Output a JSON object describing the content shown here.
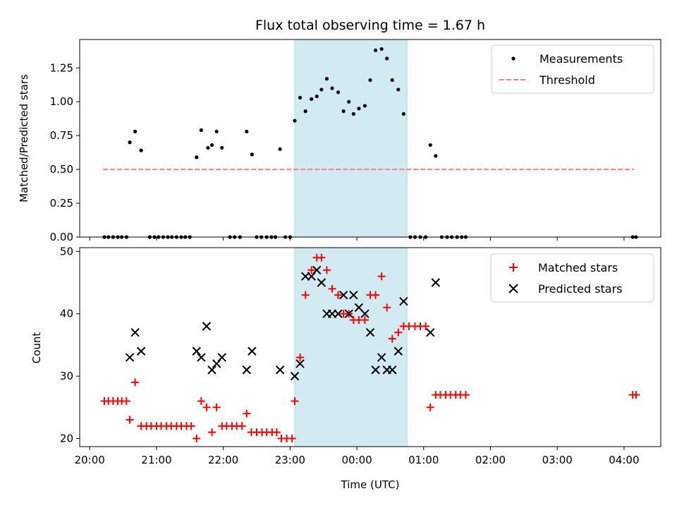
{
  "chart_data": {
    "title": "Flux total observing time = 1.67 h",
    "shaded_interval_hours": [
      23.07,
      24.75
    ],
    "shade_color": "#add8e6",
    "x_axis": {
      "label": "Time (UTC)",
      "range_hours": [
        19.85,
        28.55
      ],
      "ticks": [
        {
          "value": 20,
          "label": "20:00"
        },
        {
          "value": 21,
          "label": "21:00"
        },
        {
          "value": 22,
          "label": "22:00"
        },
        {
          "value": 23,
          "label": "23:00"
        },
        {
          "value": 24,
          "label": "00:00"
        },
        {
          "value": 25,
          "label": "01:00"
        },
        {
          "value": 26,
          "label": "02:00"
        },
        {
          "value": 27,
          "label": "03:00"
        },
        {
          "value": 28,
          "label": "04:00"
        }
      ]
    },
    "top": {
      "type": "scatter",
      "ylabel": "Matched/Predicted stars",
      "ylim": [
        0,
        1.46
      ],
      "yticks": [
        "0.00",
        "0.25",
        "0.50",
        "0.75",
        "1.00",
        "1.25"
      ],
      "legend": {
        "position": "upper right",
        "entries": [
          "Measurements",
          "Threshold"
        ]
      },
      "threshold": {
        "name": "Threshold",
        "value": 0.5,
        "x_range": [
          20.2,
          28.15
        ],
        "color": "#ff7f7f"
      },
      "measurements": {
        "name": "Measurements",
        "color": "#000000",
        "points": [
          [
            20.22,
            0
          ],
          [
            20.28,
            0
          ],
          [
            20.35,
            0
          ],
          [
            20.42,
            0
          ],
          [
            20.48,
            0
          ],
          [
            20.55,
            0
          ],
          [
            20.6,
            0.7
          ],
          [
            20.68,
            0.78
          ],
          [
            20.77,
            0.64
          ],
          [
            20.9,
            0
          ],
          [
            20.97,
            0
          ],
          [
            21.03,
            0
          ],
          [
            21.1,
            0
          ],
          [
            21.17,
            0
          ],
          [
            21.23,
            0
          ],
          [
            21.3,
            0
          ],
          [
            21.37,
            0
          ],
          [
            21.43,
            0
          ],
          [
            21.5,
            0
          ],
          [
            21.6,
            0.59
          ],
          [
            21.67,
            0.79
          ],
          [
            21.77,
            0.66
          ],
          [
            21.83,
            0.68
          ],
          [
            21.9,
            0.78
          ],
          [
            21.98,
            0.66
          ],
          [
            22.1,
            0
          ],
          [
            22.17,
            0
          ],
          [
            22.25,
            0
          ],
          [
            22.35,
            0.78
          ],
          [
            22.43,
            0.61
          ],
          [
            22.5,
            0
          ],
          [
            22.57,
            0
          ],
          [
            22.65,
            0
          ],
          [
            22.72,
            0
          ],
          [
            22.78,
            0
          ],
          [
            22.85,
            0.65
          ],
          [
            22.93,
            0
          ],
          [
            23.0,
            0
          ],
          [
            23.07,
            0.86
          ],
          [
            23.15,
            1.03
          ],
          [
            23.23,
            0.93
          ],
          [
            23.32,
            1.02
          ],
          [
            23.4,
            1.04
          ],
          [
            23.47,
            1.09
          ],
          [
            23.55,
            1.17
          ],
          [
            23.63,
            1.1
          ],
          [
            23.72,
            1.07
          ],
          [
            23.8,
            0.93
          ],
          [
            23.88,
            1.0
          ],
          [
            23.95,
            0.91
          ],
          [
            24.03,
            0.95
          ],
          [
            24.12,
            0.97
          ],
          [
            24.2,
            1.16
          ],
          [
            24.28,
            1.38
          ],
          [
            24.37,
            1.39
          ],
          [
            24.45,
            1.32
          ],
          [
            24.53,
            1.16
          ],
          [
            24.62,
            1.09
          ],
          [
            24.7,
            0.91
          ],
          [
            24.8,
            0
          ],
          [
            24.87,
            0
          ],
          [
            24.95,
            0
          ],
          [
            25.03,
            0
          ],
          [
            25.1,
            0.68
          ],
          [
            25.18,
            0.6
          ],
          [
            25.27,
            0
          ],
          [
            25.35,
            0
          ],
          [
            25.42,
            0
          ],
          [
            25.5,
            0
          ],
          [
            25.57,
            0
          ],
          [
            25.63,
            0
          ],
          [
            28.13,
            0
          ],
          [
            28.18,
            0
          ]
        ]
      }
    },
    "bottom": {
      "type": "scatter",
      "ylabel": "Count",
      "ylim": [
        18.7,
        50.6
      ],
      "yticks": [
        "20",
        "30",
        "40",
        "50"
      ],
      "legend": {
        "position": "upper right",
        "entries": [
          "Matched stars",
          "Predicted stars"
        ]
      },
      "matched": {
        "name": "Matched stars",
        "color": "#ff0000",
        "points": [
          [
            20.22,
            26
          ],
          [
            20.28,
            26
          ],
          [
            20.35,
            26
          ],
          [
            20.42,
            26
          ],
          [
            20.48,
            26
          ],
          [
            20.55,
            26
          ],
          [
            20.6,
            23
          ],
          [
            20.68,
            29
          ],
          [
            20.77,
            22
          ],
          [
            20.85,
            22
          ],
          [
            20.92,
            22
          ],
          [
            21.0,
            22
          ],
          [
            21.07,
            22
          ],
          [
            21.15,
            22
          ],
          [
            21.22,
            22
          ],
          [
            21.3,
            22
          ],
          [
            21.37,
            22
          ],
          [
            21.45,
            22
          ],
          [
            21.52,
            22
          ],
          [
            21.6,
            20
          ],
          [
            21.67,
            26
          ],
          [
            21.75,
            25
          ],
          [
            21.83,
            21
          ],
          [
            21.9,
            25
          ],
          [
            21.98,
            22
          ],
          [
            22.05,
            22
          ],
          [
            22.13,
            22
          ],
          [
            22.2,
            22
          ],
          [
            22.28,
            22
          ],
          [
            22.35,
            24
          ],
          [
            22.42,
            21
          ],
          [
            22.5,
            21
          ],
          [
            22.58,
            21
          ],
          [
            22.65,
            21
          ],
          [
            22.73,
            21
          ],
          [
            22.8,
            21
          ],
          [
            22.87,
            20
          ],
          [
            22.95,
            20
          ],
          [
            23.03,
            20
          ],
          [
            23.07,
            26
          ],
          [
            23.15,
            33
          ],
          [
            23.23,
            43
          ],
          [
            23.32,
            47
          ],
          [
            23.4,
            49
          ],
          [
            23.47,
            49
          ],
          [
            23.55,
            47
          ],
          [
            23.63,
            44
          ],
          [
            23.72,
            43
          ],
          [
            23.8,
            40
          ],
          [
            23.88,
            40
          ],
          [
            23.95,
            39
          ],
          [
            24.03,
            39
          ],
          [
            24.12,
            39
          ],
          [
            24.2,
            43
          ],
          [
            24.28,
            43
          ],
          [
            24.37,
            46
          ],
          [
            24.45,
            41
          ],
          [
            24.53,
            36
          ],
          [
            24.62,
            37
          ],
          [
            24.7,
            38
          ],
          [
            24.78,
            38
          ],
          [
            24.87,
            38
          ],
          [
            24.95,
            38
          ],
          [
            25.03,
            38
          ],
          [
            25.1,
            25
          ],
          [
            25.18,
            27
          ],
          [
            25.25,
            27
          ],
          [
            25.33,
            27
          ],
          [
            25.4,
            27
          ],
          [
            25.48,
            27
          ],
          [
            25.55,
            27
          ],
          [
            25.63,
            27
          ],
          [
            28.13,
            27
          ],
          [
            28.18,
            27
          ]
        ]
      },
      "predicted": {
        "name": "Predicted stars",
        "color": "#000000",
        "points": [
          [
            20.6,
            33
          ],
          [
            20.68,
            37
          ],
          [
            20.77,
            34
          ],
          [
            21.6,
            34
          ],
          [
            21.67,
            33
          ],
          [
            21.75,
            38
          ],
          [
            21.83,
            31
          ],
          [
            21.9,
            32
          ],
          [
            21.98,
            33
          ],
          [
            22.35,
            31
          ],
          [
            22.43,
            34
          ],
          [
            22.85,
            31
          ],
          [
            23.07,
            30
          ],
          [
            23.15,
            32
          ],
          [
            23.23,
            46
          ],
          [
            23.32,
            46
          ],
          [
            23.4,
            47
          ],
          [
            23.47,
            45
          ],
          [
            23.55,
            40
          ],
          [
            23.63,
            40
          ],
          [
            23.72,
            40
          ],
          [
            23.8,
            43
          ],
          [
            23.88,
            40
          ],
          [
            23.95,
            43
          ],
          [
            24.03,
            41
          ],
          [
            24.12,
            40
          ],
          [
            24.2,
            37
          ],
          [
            24.28,
            31
          ],
          [
            24.37,
            33
          ],
          [
            24.45,
            31
          ],
          [
            24.53,
            31
          ],
          [
            24.62,
            34
          ],
          [
            24.7,
            42
          ],
          [
            25.1,
            37
          ],
          [
            25.18,
            45
          ]
        ]
      }
    }
  }
}
